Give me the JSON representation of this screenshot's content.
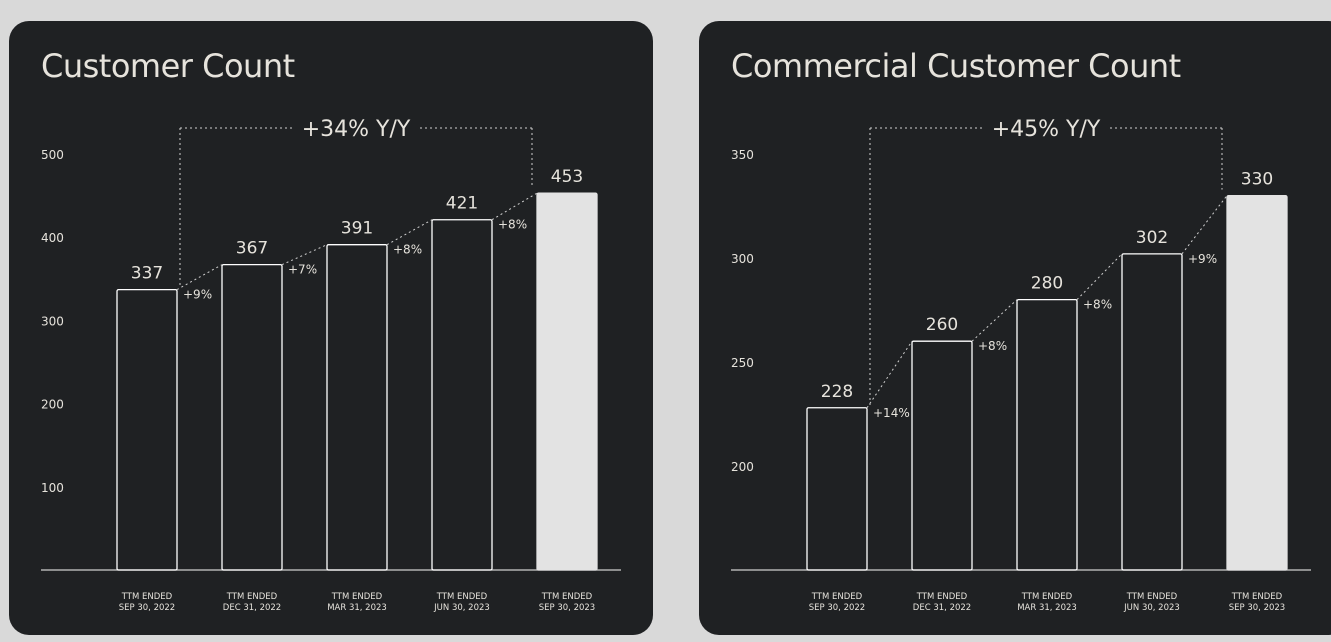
{
  "colors": {
    "background": "#d9d9d9",
    "panel": "#1f2123",
    "text": "#e6e3dc",
    "bar_outline": "#ffffff",
    "bar_highlight": "#e3e3e3"
  },
  "chart_data": [
    {
      "type": "bar",
      "title": "Customer Count",
      "categories": [
        [
          "TTM ENDED",
          "SEP 30, 2022"
        ],
        [
          "TTM ENDED",
          "DEC 31, 2022"
        ],
        [
          "TTM ENDED",
          "MAR 31, 2023"
        ],
        [
          "TTM ENDED",
          "JUN 30, 2023"
        ],
        [
          "TTM ENDED",
          "SEP 30, 2023"
        ]
      ],
      "values": [
        337,
        367,
        391,
        421,
        453
      ],
      "value_labels": [
        "337",
        "367",
        "391",
        "421",
        "453"
      ],
      "growth_labels": [
        "+9%",
        "+7%",
        "+8%",
        "+8%"
      ],
      "yoy_label": "+34% Y/Y",
      "yticks": [
        100,
        200,
        300,
        400,
        500
      ],
      "ylim": [
        0,
        500
      ],
      "highlight_last": true,
      "grid": false
    },
    {
      "type": "bar",
      "title": "Commercial Customer Count",
      "categories": [
        [
          "TTM ENDED",
          "SEP 30, 2022"
        ],
        [
          "TTM ENDED",
          "DEC 31, 2022"
        ],
        [
          "TTM ENDED",
          "MAR 31, 2023"
        ],
        [
          "TTM ENDED",
          "JUN 30, 2023"
        ],
        [
          "TTM ENDED",
          "SEP 30, 2023"
        ]
      ],
      "values": [
        228,
        260,
        280,
        302,
        330
      ],
      "value_labels": [
        "228",
        "260",
        "280",
        "302",
        "330"
      ],
      "growth_labels": [
        "+14%",
        "+8%",
        "+8%",
        "+9%"
      ],
      "yoy_label": "+45% Y/Y",
      "yticks": [
        200,
        250,
        300,
        350
      ],
      "ylim": [
        150,
        350
      ],
      "highlight_last": true,
      "grid": false
    }
  ]
}
